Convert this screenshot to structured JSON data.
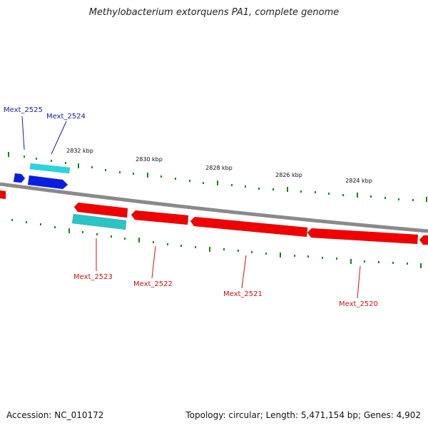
{
  "header": {
    "title": "Methylobacterium extorquens PA1, complete genome"
  },
  "footer": {
    "accession": "Accession: NC_010172",
    "topology": "Topology: circular; Length: 5,471,154 bp; Genes: 4,902"
  },
  "colors": {
    "backbone": "#8a8a8a",
    "tick": "#118811",
    "forward_gene": "#0a1ee0",
    "reverse_gene": "#f00000",
    "forward_other": "#22d8e0",
    "reverse_other": "#2ac4c4",
    "label_forward": "#1a1aa0",
    "label_reverse": "#cc1111"
  },
  "scale": {
    "unit": "kbp",
    "labels": [
      "2832 kbp",
      "2830 kbp",
      "2828 kbp",
      "2826 kbp",
      "2824 kbp"
    ]
  },
  "genes": [
    {
      "name": "Mext_2525",
      "strand": "forward"
    },
    {
      "name": "Mext_2524",
      "strand": "forward"
    },
    {
      "name": "Mext_2523",
      "strand": "reverse"
    },
    {
      "name": "Mext_2522",
      "strand": "reverse"
    },
    {
      "name": "Mext_2521",
      "strand": "reverse"
    },
    {
      "name": "Mext_2520",
      "strand": "reverse"
    }
  ]
}
